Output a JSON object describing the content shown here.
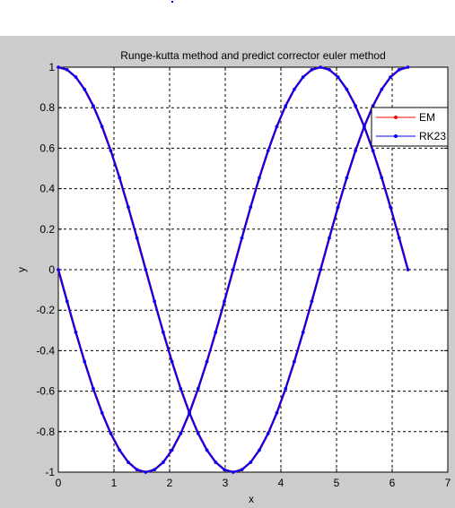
{
  "chart_data": {
    "type": "line",
    "title": "Runge-kutta method and predict corrector euler method",
    "xlabel": "x",
    "ylabel": "y",
    "xlim": [
      0,
      7
    ],
    "ylim": [
      -1,
      1
    ],
    "xticks": [
      0,
      1,
      2,
      3,
      4,
      5,
      6,
      7
    ],
    "xtick_labels": [
      "0",
      "1",
      "2",
      "3",
      "4",
      "5",
      "6",
      "7"
    ],
    "yticks": [
      -1,
      -0.8,
      -0.6,
      -0.4,
      -0.2,
      0,
      0.2,
      0.4,
      0.6,
      0.8,
      1
    ],
    "ytick_labels": [
      "-1",
      "-0.8",
      "-0.6",
      "-0.4",
      "-0.2",
      "0",
      "0.2",
      "0.4",
      "0.6",
      "0.8",
      "1"
    ],
    "grid": true,
    "grid_style": "dashed",
    "legend_position": "top-right",
    "legend": [
      "EM",
      "RK23"
    ],
    "x": [
      0,
      0.1571,
      0.3142,
      0.4712,
      0.6283,
      0.7854,
      0.9425,
      1.0996,
      1.2566,
      1.4137,
      1.5708,
      1.7279,
      1.885,
      2.042,
      2.1991,
      2.3562,
      2.5133,
      2.6704,
      2.8274,
      2.9845,
      3.1416,
      3.2987,
      3.4558,
      3.6128,
      3.7699,
      3.927,
      4.0841,
      4.2412,
      4.3982,
      4.5553,
      4.7124,
      4.8695,
      5.0265,
      5.1836,
      5.3407,
      5.4978,
      5.6549,
      5.8119,
      5.969,
      6.1261,
      6.2832
    ],
    "series": [
      {
        "name": "EM",
        "color": "#ff0000",
        "marker": "dot",
        "values_first": [
          0,
          -0.1564,
          -0.309,
          -0.454,
          -0.5878,
          -0.7071,
          -0.809,
          -0.891,
          -0.9511,
          -0.9877,
          -1,
          -0.9877,
          -0.9511,
          -0.891,
          -0.809,
          -0.7071,
          -0.5878,
          -0.454,
          -0.309,
          -0.1564,
          0,
          0.1564,
          0.309,
          0.454,
          0.5878,
          0.7071,
          0.809,
          0.891,
          0.9511,
          0.9877,
          1,
          0.9877,
          0.9511,
          0.891,
          0.809,
          0.7071,
          0.5878,
          0.454,
          0.309,
          0.1564,
          0
        ],
        "values_second": [
          1,
          0.9877,
          0.9511,
          0.891,
          0.809,
          0.7071,
          0.5878,
          0.454,
          0.309,
          0.1564,
          0,
          -0.1564,
          -0.309,
          -0.454,
          -0.5878,
          -0.7071,
          -0.809,
          -0.891,
          -0.9511,
          -0.9877,
          -1,
          -0.9877,
          -0.9511,
          -0.891,
          -0.809,
          -0.7071,
          -0.5878,
          -0.454,
          -0.309,
          -0.1564,
          0,
          0.1564,
          0.309,
          0.454,
          0.5878,
          0.7071,
          0.809,
          0.891,
          0.9511,
          0.9877,
          1
        ]
      },
      {
        "name": "RK23",
        "color": "#0000ff",
        "marker": "dot",
        "values_first": [
          0,
          -0.1564,
          -0.309,
          -0.454,
          -0.5878,
          -0.7071,
          -0.809,
          -0.891,
          -0.9511,
          -0.9877,
          -1,
          -0.9877,
          -0.9511,
          -0.891,
          -0.809,
          -0.7071,
          -0.5878,
          -0.454,
          -0.309,
          -0.1564,
          0,
          0.1564,
          0.309,
          0.454,
          0.5878,
          0.7071,
          0.809,
          0.891,
          0.9511,
          0.9877,
          1,
          0.9877,
          0.9511,
          0.891,
          0.809,
          0.7071,
          0.5878,
          0.454,
          0.309,
          0.1564,
          0
        ],
        "values_second": [
          1,
          0.9877,
          0.9511,
          0.891,
          0.809,
          0.7071,
          0.5878,
          0.454,
          0.309,
          0.1564,
          0,
          -0.1564,
          -0.309,
          -0.454,
          -0.5878,
          -0.7071,
          -0.809,
          -0.891,
          -0.9511,
          -0.9877,
          -1,
          -0.9877,
          -0.9511,
          -0.891,
          -0.809,
          -0.7071,
          -0.5878,
          -0.454,
          -0.309,
          -0.1564,
          0,
          0.1564,
          0.309,
          0.454,
          0.5878,
          0.7071,
          0.809,
          0.891,
          0.9511,
          0.9877,
          1
        ]
      }
    ]
  }
}
